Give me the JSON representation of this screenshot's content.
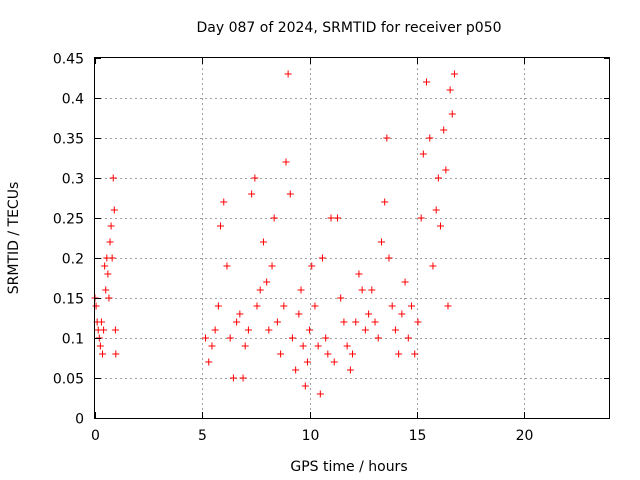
{
  "chart_data": {
    "type": "scatter",
    "title": "Day 087 of 2024, SRMTID for receiver p050",
    "xlabel": "GPS time / hours",
    "ylabel": "SRMTID / TECUs",
    "xlim": [
      0,
      24
    ],
    "ylim": [
      0,
      0.45
    ],
    "grid": true,
    "legend": "none",
    "marker": "plus",
    "color": "#ff0000",
    "xticks": [
      0,
      5,
      10,
      15,
      20
    ],
    "xtick_labels": [
      "0",
      "5",
      "10",
      "15",
      "20"
    ],
    "yticks": [
      0,
      0.05,
      0.1,
      0.15,
      0.2,
      0.25,
      0.3,
      0.35,
      0.4,
      0.45
    ],
    "ytick_labels": [
      "0",
      "0.05",
      "0.1",
      "0.15",
      "0.2",
      "0.25",
      "0.3",
      "0.35",
      "0.4",
      "0.45"
    ],
    "series": [
      {
        "name": "SRMTID",
        "points": [
          [
            0.0,
            0.15
          ],
          [
            0.05,
            0.14
          ],
          [
            0.1,
            0.12
          ],
          [
            0.15,
            0.11
          ],
          [
            0.2,
            0.1
          ],
          [
            0.25,
            0.09
          ],
          [
            0.3,
            0.12
          ],
          [
            0.35,
            0.08
          ],
          [
            0.4,
            0.11
          ],
          [
            0.45,
            0.19
          ],
          [
            0.5,
            0.16
          ],
          [
            0.55,
            0.2
          ],
          [
            0.6,
            0.18
          ],
          [
            0.65,
            0.15
          ],
          [
            0.7,
            0.22
          ],
          [
            0.75,
            0.24
          ],
          [
            0.8,
            0.2
          ],
          [
            0.85,
            0.3
          ],
          [
            0.9,
            0.26
          ],
          [
            0.95,
            0.11
          ],
          [
            0.97,
            0.08
          ],
          [
            5.15,
            0.1
          ],
          [
            5.3,
            0.07
          ],
          [
            5.45,
            0.09
          ],
          [
            5.6,
            0.11
          ],
          [
            5.75,
            0.14
          ],
          [
            5.85,
            0.24
          ],
          [
            6.0,
            0.27
          ],
          [
            6.15,
            0.19
          ],
          [
            6.3,
            0.1
          ],
          [
            6.45,
            0.05
          ],
          [
            6.6,
            0.12
          ],
          [
            6.75,
            0.13
          ],
          [
            6.9,
            0.05
          ],
          [
            7.0,
            0.09
          ],
          [
            7.15,
            0.11
          ],
          [
            7.3,
            0.28
          ],
          [
            7.45,
            0.3
          ],
          [
            7.55,
            0.14
          ],
          [
            7.7,
            0.16
          ],
          [
            7.85,
            0.22
          ],
          [
            8.0,
            0.17
          ],
          [
            8.1,
            0.11
          ],
          [
            8.25,
            0.19
          ],
          [
            8.35,
            0.25
          ],
          [
            8.5,
            0.12
          ],
          [
            8.65,
            0.08
          ],
          [
            8.8,
            0.14
          ],
          [
            8.9,
            0.32
          ],
          [
            9.0,
            0.43
          ],
          [
            9.1,
            0.28
          ],
          [
            9.2,
            0.1
          ],
          [
            9.35,
            0.06
          ],
          [
            9.5,
            0.13
          ],
          [
            9.6,
            0.16
          ],
          [
            9.7,
            0.09
          ],
          [
            9.8,
            0.04
          ],
          [
            9.9,
            0.07
          ],
          [
            10.0,
            0.11
          ],
          [
            10.1,
            0.19
          ],
          [
            10.25,
            0.14
          ],
          [
            10.4,
            0.09
          ],
          [
            10.5,
            0.03
          ],
          [
            10.6,
            0.2
          ],
          [
            10.75,
            0.1
          ],
          [
            10.85,
            0.08
          ],
          [
            11.0,
            0.25
          ],
          [
            11.15,
            0.07
          ],
          [
            11.3,
            0.25
          ],
          [
            11.45,
            0.15
          ],
          [
            11.6,
            0.12
          ],
          [
            11.75,
            0.09
          ],
          [
            11.9,
            0.06
          ],
          [
            12.0,
            0.08
          ],
          [
            12.15,
            0.12
          ],
          [
            12.3,
            0.18
          ],
          [
            12.45,
            0.16
          ],
          [
            12.6,
            0.11
          ],
          [
            12.75,
            0.13
          ],
          [
            12.9,
            0.16
          ],
          [
            13.05,
            0.12
          ],
          [
            13.2,
            0.1
          ],
          [
            13.35,
            0.22
          ],
          [
            13.5,
            0.27
          ],
          [
            13.6,
            0.35
          ],
          [
            13.7,
            0.2
          ],
          [
            13.85,
            0.14
          ],
          [
            14.0,
            0.11
          ],
          [
            14.15,
            0.08
          ],
          [
            14.3,
            0.13
          ],
          [
            14.45,
            0.17
          ],
          [
            14.6,
            0.1
          ],
          [
            14.75,
            0.14
          ],
          [
            14.9,
            0.08
          ],
          [
            15.05,
            0.12
          ],
          [
            15.2,
            0.25
          ],
          [
            15.3,
            0.33
          ],
          [
            15.45,
            0.42
          ],
          [
            15.6,
            0.35
          ],
          [
            15.75,
            0.19
          ],
          [
            15.9,
            0.26
          ],
          [
            16.0,
            0.3
          ],
          [
            16.1,
            0.24
          ],
          [
            16.25,
            0.36
          ],
          [
            16.35,
            0.31
          ],
          [
            16.45,
            0.14
          ],
          [
            16.55,
            0.41
          ],
          [
            16.65,
            0.38
          ],
          [
            16.75,
            0.43
          ]
        ]
      }
    ]
  }
}
